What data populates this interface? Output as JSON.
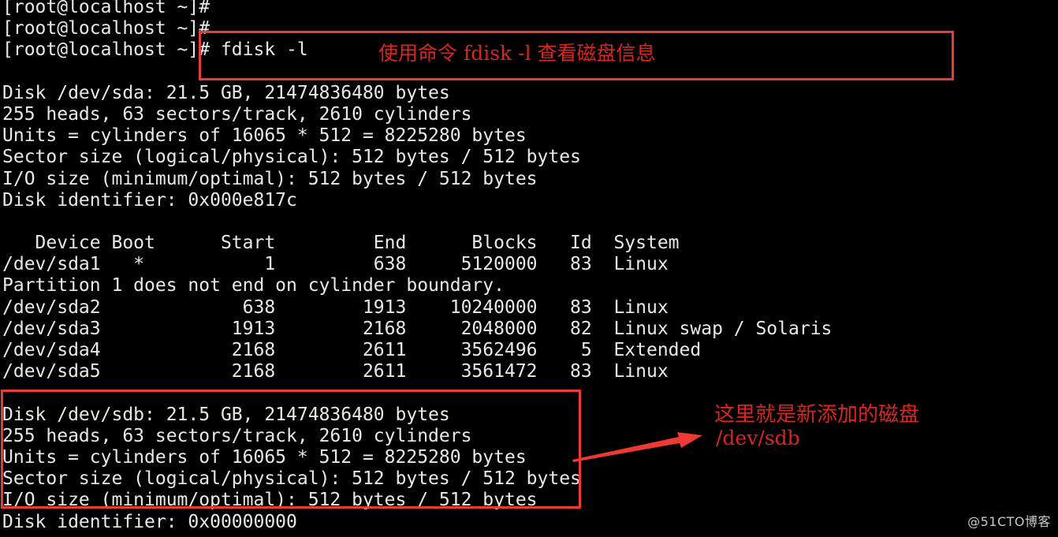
{
  "terminal": {
    "colors": {
      "background": "#000000",
      "foreground": "#e9e9e9"
    },
    "prompt": "[root@localhost ~]#",
    "command": "fdisk -l",
    "lines": [
      "[root@localhost ~]# ",
      "[root@localhost ~]# ",
      "[root@localhost ~]# fdisk -l",
      "",
      "Disk /dev/sda: 21.5 GB, 21474836480 bytes",
      "255 heads, 63 sectors/track, 2610 cylinders",
      "Units = cylinders of 16065 * 512 = 8225280 bytes",
      "Sector size (logical/physical): 512 bytes / 512 bytes",
      "I/O size (minimum/optimal): 512 bytes / 512 bytes",
      "Disk identifier: 0x000e817c",
      "",
      "   Device Boot      Start         End      Blocks   Id  System",
      "/dev/sda1   *           1         638     5120000   83  Linux",
      "Partition 1 does not end on cylinder boundary.",
      "/dev/sda2             638        1913    10240000   83  Linux",
      "/dev/sda3            1913        2168     2048000   82  Linux swap / Solaris",
      "/dev/sda4            2168        2611     3562496    5  Extended",
      "/dev/sda5            2168        2611     3561472   83  Linux",
      "",
      "Disk /dev/sdb: 21.5 GB, 21474836480 bytes",
      "255 heads, 63 sectors/track, 2610 cylinders",
      "Units = cylinders of 16065 * 512 = 8225280 bytes",
      "Sector size (logical/physical): 512 bytes / 512 bytes",
      "I/O size (minimum/optimal): 512 bytes / 512 bytes",
      "Disk identifier: 0x00000000"
    ],
    "partition_table": {
      "headers": [
        "Device",
        "Boot",
        "Start",
        "End",
        "Blocks",
        "Id",
        "System"
      ],
      "rows": [
        [
          "/dev/sda1",
          "*",
          "1",
          "638",
          "5120000",
          "83",
          "Linux"
        ],
        [
          "/dev/sda2",
          "",
          "638",
          "1913",
          "10240000",
          "83",
          "Linux"
        ],
        [
          "/dev/sda3",
          "",
          "1913",
          "2168",
          "2048000",
          "82",
          "Linux swap / Solaris"
        ],
        [
          "/dev/sda4",
          "",
          "2168",
          "2611",
          "3562496",
          "5",
          "Extended"
        ],
        [
          "/dev/sda5",
          "",
          "2168",
          "2611",
          "3561472",
          "83",
          "Linux"
        ]
      ],
      "note": "Partition 1 does not end on cylinder boundary."
    }
  },
  "annotations": {
    "accent_color": "#ef3a34",
    "accent_text_color": "#dc2420",
    "command_note": "使用命令 fdisk -l 查看磁盘信息",
    "new_disk_note_line1": "这里就是新添加的磁盘",
    "new_disk_note_line2": "/dev/sdb"
  },
  "watermark": {
    "text": "@51CTO博客",
    "color": "#c9c9c9"
  }
}
